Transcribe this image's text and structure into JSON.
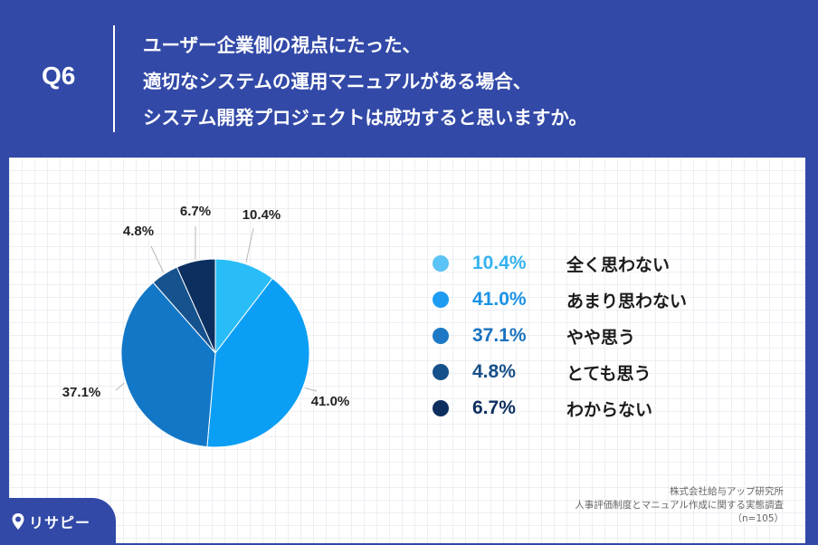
{
  "header": {
    "q_label": "Q6",
    "question_lines": [
      "ユーザー企業側の視点にたった、",
      "適切なシステムの運用マニュアルがある場合、",
      "システム開発プロジェクトは成功すると思いますか。"
    ]
  },
  "chart_data": {
    "type": "pie",
    "start_angle_deg": 0,
    "direction": "clockwise",
    "slices": [
      {
        "label": "全く思わない",
        "value": 10.4,
        "display": "10.4%",
        "color": "#29bdf8"
      },
      {
        "label": "あまり思わない",
        "value": 41.0,
        "display": "41.0%",
        "color": "#0b9ef5"
      },
      {
        "label": "やや思う",
        "value": 37.1,
        "display": "37.1%",
        "color": "#1377c7"
      },
      {
        "label": "とても思う",
        "value": 4.8,
        "display": "4.8%",
        "color": "#16528d"
      },
      {
        "label": "わからない",
        "value": 6.7,
        "display": "6.7%",
        "color": "#0c2f60"
      }
    ]
  },
  "legend": [
    {
      "value": "10.4%",
      "label": "全く思わない",
      "dot_color": "#5cc3f6",
      "text_color": "#35b2ef"
    },
    {
      "value": "41.0%",
      "label": "あまり思わない",
      "dot_color": "#1e9cf2",
      "text_color": "#1a92e6"
    },
    {
      "value": "37.1%",
      "label": "やや思う",
      "dot_color": "#1d79c4",
      "text_color": "#1a72bd"
    },
    {
      "value": "4.8%",
      "label": "とても思う",
      "dot_color": "#17518b",
      "text_color": "#174f88"
    },
    {
      "value": "6.7%",
      "label": "わからない",
      "dot_color": "#0e2f5e",
      "text_color": "#0e2f5e"
    }
  ],
  "source": {
    "line1": "株式会社給与アップ研究所",
    "line2": "人事評価制度とマニュアル作成に関する実態調査",
    "line3": "（n=105）"
  },
  "logo": {
    "text": "リサピー"
  }
}
